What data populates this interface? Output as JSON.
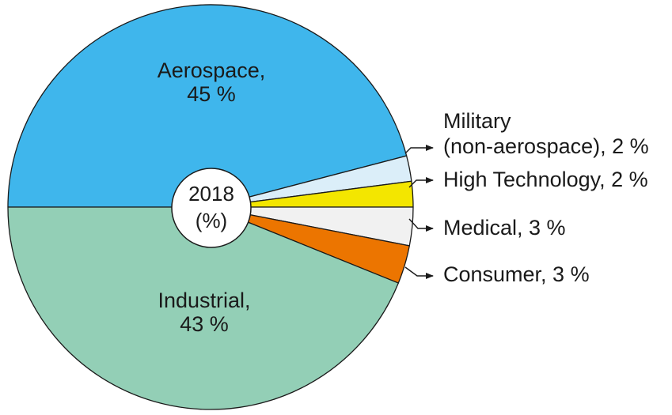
{
  "chart_data": {
    "type": "pie",
    "center_label": [
      "2018",
      "(%)"
    ],
    "slices": [
      {
        "name": "Aerospace",
        "label": [
          "Aerospace,",
          "45 %"
        ],
        "value": 45,
        "color": "#3fb6ec",
        "placement": "inside"
      },
      {
        "name": "Military (non-aerospace)",
        "label": [
          "Military",
          "(non-aerospace), 2 %"
        ],
        "value": 2,
        "color": "#dbeef9",
        "placement": "outside"
      },
      {
        "name": "High Technology",
        "label": [
          "High Technology, 2 %"
        ],
        "value": 2,
        "color": "#f3e600",
        "placement": "outside"
      },
      {
        "name": "Medical",
        "label": [
          "Medical, 3 %"
        ],
        "value": 3,
        "color": "#f1f1f1",
        "placement": "outside"
      },
      {
        "name": "Consumer",
        "label": [
          "Consumer, 3 %"
        ],
        "value": 3,
        "color": "#ec7500",
        "placement": "outside"
      },
      {
        "name": "Industrial",
        "label": [
          "Industrial,",
          "43 %"
        ],
        "value": 43,
        "color": "#93cfb6",
        "placement": "inside"
      }
    ]
  }
}
